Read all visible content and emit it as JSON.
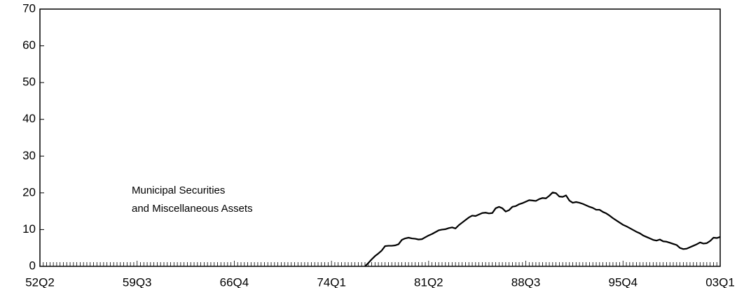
{
  "chart_data": {
    "type": "line",
    "annotation": [
      "Municipal Securities",
      "and Miscellaneous Assets"
    ],
    "categories": [
      "52Q2",
      null,
      null,
      null,
      null,
      null,
      null,
      null,
      null,
      null,
      null,
      null,
      null,
      null,
      null,
      null,
      null,
      null,
      null,
      null,
      null,
      null,
      null,
      null,
      null,
      null,
      null,
      null,
      null,
      "59Q3",
      null,
      null,
      null,
      null,
      null,
      null,
      null,
      null,
      null,
      null,
      null,
      null,
      null,
      null,
      null,
      null,
      null,
      null,
      null,
      null,
      null,
      null,
      null,
      null,
      null,
      null,
      null,
      null,
      "66Q4",
      null,
      null,
      null,
      null,
      null,
      null,
      null,
      null,
      null,
      null,
      null,
      null,
      null,
      null,
      null,
      null,
      null,
      null,
      null,
      null,
      null,
      null,
      null,
      null,
      null,
      null,
      null,
      null,
      "74Q1",
      null,
      null,
      null,
      null,
      null,
      null,
      null,
      null,
      null,
      null,
      null,
      null,
      null,
      null,
      null,
      null,
      null,
      null,
      null,
      null,
      null,
      null,
      null,
      null,
      null,
      null,
      null,
      null,
      "81Q2",
      null,
      null,
      null,
      null,
      null,
      null,
      null,
      null,
      null,
      null,
      null,
      null,
      null,
      null,
      null,
      null,
      null,
      null,
      null,
      null,
      null,
      null,
      null,
      null,
      null,
      null,
      null,
      null,
      "88Q3",
      null,
      null,
      null,
      null,
      null,
      null,
      null,
      null,
      null,
      null,
      null,
      null,
      null,
      null,
      null,
      null,
      null,
      null,
      null,
      null,
      null,
      null,
      null,
      null,
      null,
      null,
      null,
      null,
      "95Q4",
      null,
      null,
      null,
      null,
      null,
      null,
      null,
      null,
      null,
      null,
      null,
      null,
      null,
      null,
      null,
      null,
      null,
      null,
      null,
      null,
      null,
      null,
      null,
      null,
      null,
      null,
      null,
      null,
      "03Q1"
    ],
    "series": [
      {
        "color": "#000000",
        "values": [
          null,
          null,
          null,
          null,
          null,
          null,
          null,
          null,
          null,
          null,
          null,
          null,
          null,
          null,
          null,
          null,
          null,
          null,
          null,
          null,
          null,
          null,
          null,
          null,
          null,
          null,
          null,
          null,
          null,
          null,
          null,
          null,
          null,
          null,
          null,
          null,
          null,
          null,
          null,
          null,
          null,
          null,
          null,
          null,
          null,
          null,
          null,
          null,
          null,
          null,
          null,
          null,
          null,
          null,
          null,
          null,
          null,
          null,
          null,
          null,
          null,
          null,
          null,
          null,
          null,
          null,
          null,
          null,
          null,
          null,
          null,
          null,
          null,
          null,
          null,
          null,
          null,
          null,
          null,
          null,
          null,
          null,
          null,
          null,
          null,
          null,
          null,
          null,
          null,
          null,
          null,
          null,
          null,
          null,
          null,
          null,
          null,
          0,
          0.9,
          1.9,
          2.8,
          3.5,
          4.3,
          5.5,
          5.6,
          5.6,
          5.7,
          6,
          7.2,
          7.6,
          7.8,
          7.6,
          7.5,
          7.3,
          7.4,
          7.9,
          8.4,
          8.8,
          9.3,
          9.8,
          10,
          10.1,
          10.4,
          10.6,
          10.3,
          11.2,
          11.9,
          12.6,
          13.3,
          13.8,
          13.7,
          14.1,
          14.5,
          14.6,
          14.4,
          14.5,
          15.8,
          16.2,
          15.8,
          14.9,
          15.3,
          16.2,
          16.4,
          16.9,
          17.2,
          17.6,
          18,
          17.9,
          17.8,
          18.3,
          18.6,
          18.5,
          19.2,
          20.1,
          19.9,
          19,
          18.9,
          19.3,
          17.9,
          17.3,
          17.5,
          17.3,
          17,
          16.6,
          16.2,
          15.9,
          15.4,
          15.4,
          14.8,
          14.4,
          13.8,
          13.1,
          12.5,
          11.9,
          11.3,
          10.9,
          10.4,
          9.9,
          9.4,
          9,
          8.4,
          8,
          7.6,
          7.2,
          7,
          7.3,
          6.8,
          6.7,
          6.4,
          6.1,
          5.8,
          5,
          4.7,
          4.8,
          5.2,
          5.6,
          6,
          6.5,
          6.2,
          6.3,
          6.9,
          7.8,
          7.7,
          8
        ]
      }
    ],
    "ylim": [
      0,
      70
    ],
    "yticks": [
      0,
      10,
      20,
      30,
      40,
      50,
      60,
      70
    ],
    "grid": false
  }
}
